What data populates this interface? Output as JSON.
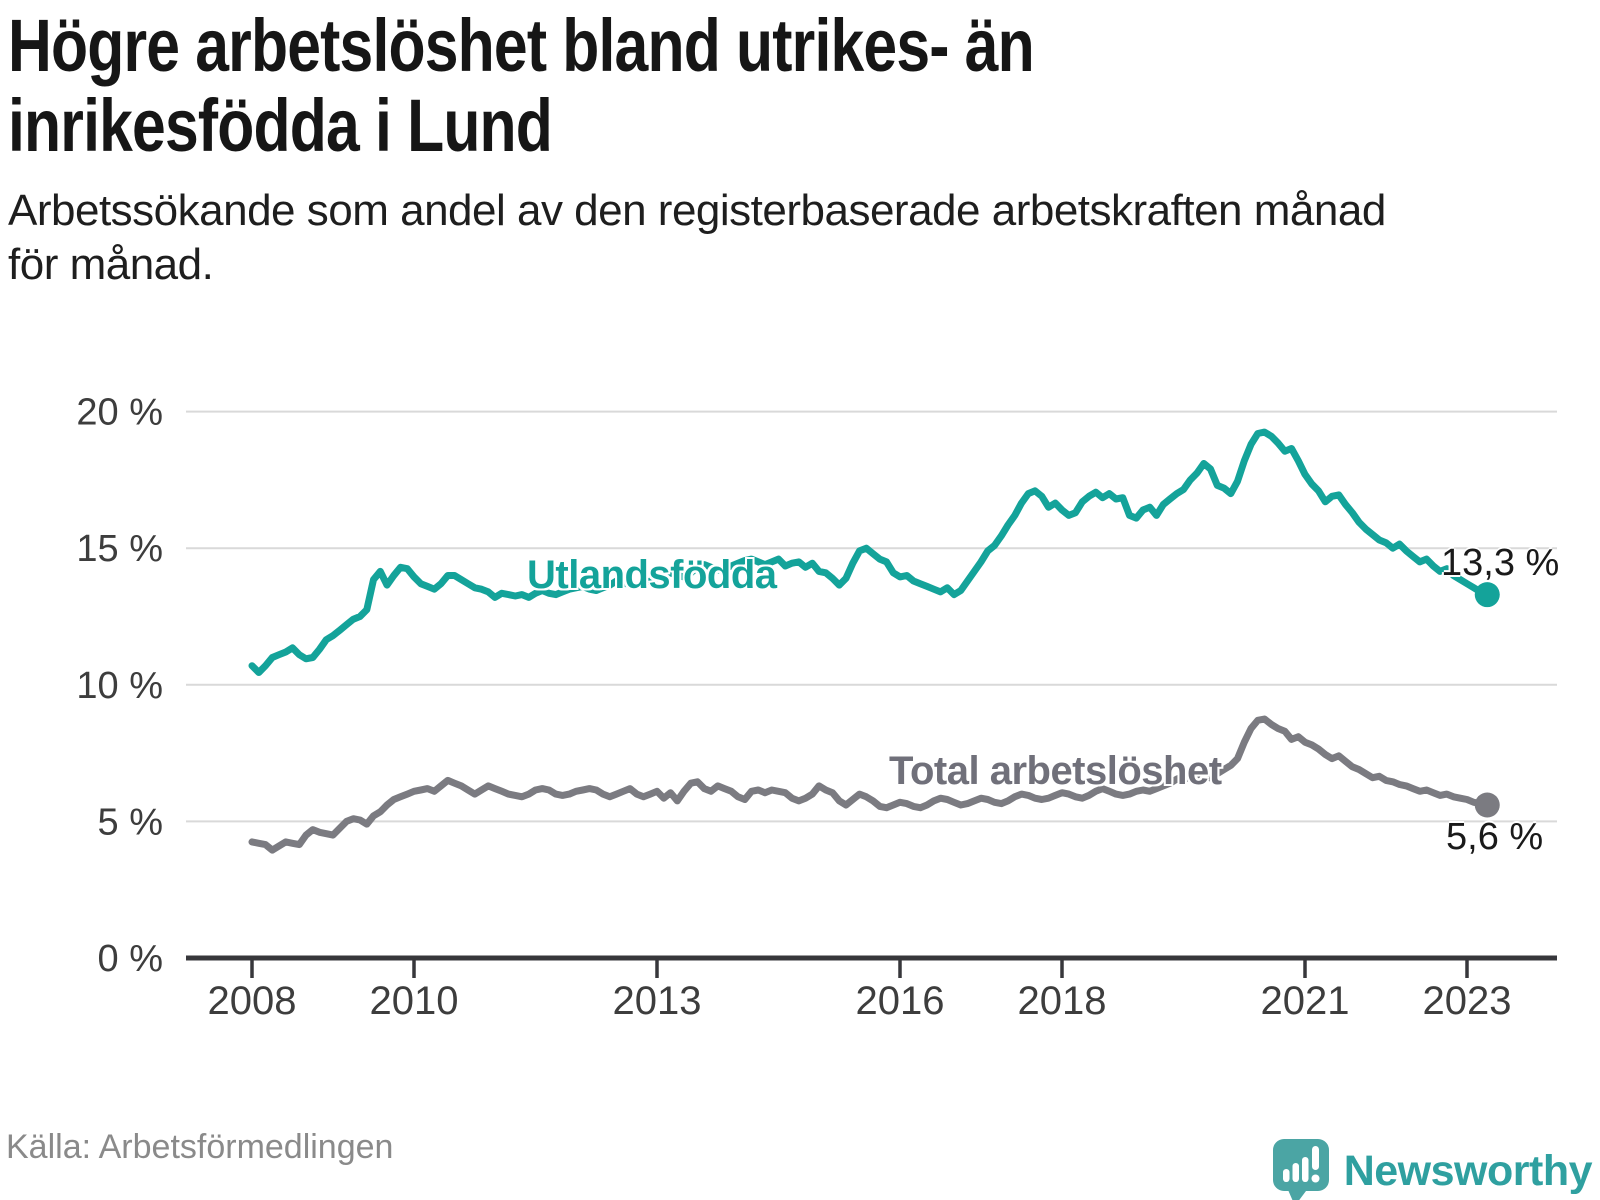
{
  "title_lines": [
    "Högre arbetslöshet bland utrikes- än",
    "inrikesfödda i Lund"
  ],
  "subtitle_lines": [
    "Arbetssökande som andel av den registerbaserade arbetskraften månad",
    "för månad."
  ],
  "source": "Källa: Arbetsförmedlingen",
  "brand": {
    "name": "Newsworthy",
    "bubble_color": "#4BA5A4",
    "text_color": "#2FA0A0"
  },
  "chart_data": {
    "type": "line",
    "frequency": "monthly",
    "x_start": "2008-01",
    "x_end": "2023-04",
    "x_tick_years": [
      2008,
      2010,
      2013,
      2016,
      2018,
      2021,
      2023
    ],
    "x_tick_labels": [
      "2008",
      "2010",
      "2013",
      "2016",
      "2018",
      "2021",
      "2023"
    ],
    "y_ticks": [
      0,
      5,
      10,
      15,
      20
    ],
    "y_tick_labels": [
      "0 %",
      "5 %",
      "10 %",
      "15 %",
      "20 %"
    ],
    "ylim": [
      0,
      21
    ],
    "grid": "horizontal",
    "colors": {
      "grid": "#d9d9d9",
      "axis": "#37373b",
      "tick_text": "#3d3d3d"
    },
    "series": [
      {
        "name": "Utlandsfödda",
        "color": "#14A39A",
        "end_label": "13,3 %",
        "last_value": 13.3,
        "values": [
          10.7,
          10.45,
          10.7,
          11.0,
          11.1,
          11.2,
          11.35,
          11.1,
          10.95,
          11.0,
          11.3,
          11.65,
          11.8,
          12.0,
          12.2,
          12.4,
          12.5,
          12.75,
          13.85,
          14.15,
          13.65,
          14.0,
          14.3,
          14.25,
          13.95,
          13.7,
          13.6,
          13.5,
          13.7,
          14.0,
          14.0,
          13.85,
          13.7,
          13.55,
          13.5,
          13.4,
          13.2,
          13.35,
          13.3,
          13.25,
          13.3,
          13.2,
          13.35,
          13.45,
          13.35,
          13.3,
          13.4,
          13.5,
          13.55,
          13.6,
          13.5,
          13.45,
          13.55,
          13.65,
          13.8,
          13.75,
          13.65,
          13.6,
          13.7,
          13.8,
          13.9,
          14.0,
          14.1,
          14.0,
          13.95,
          14.1,
          14.3,
          14.4,
          14.3,
          14.2,
          14.25,
          14.35,
          14.45,
          14.55,
          14.6,
          14.5,
          14.4,
          14.5,
          14.6,
          14.35,
          14.45,
          14.5,
          14.3,
          14.45,
          14.15,
          14.1,
          13.9,
          13.65,
          13.9,
          14.45,
          14.9,
          15.0,
          14.8,
          14.6,
          14.5,
          14.1,
          13.95,
          14.0,
          13.8,
          13.7,
          13.6,
          13.5,
          13.4,
          13.55,
          13.3,
          13.45,
          13.8,
          14.15,
          14.5,
          14.9,
          15.1,
          15.45,
          15.85,
          16.2,
          16.65,
          17.0,
          17.1,
          16.9,
          16.5,
          16.65,
          16.4,
          16.2,
          16.3,
          16.7,
          16.9,
          17.05,
          16.85,
          17.0,
          16.8,
          16.85,
          16.2,
          16.1,
          16.4,
          16.5,
          16.2,
          16.6,
          16.8,
          17.0,
          17.15,
          17.5,
          17.75,
          18.1,
          17.9,
          17.3,
          17.2,
          17.0,
          17.45,
          18.2,
          18.8,
          19.2,
          19.25,
          19.1,
          18.85,
          18.55,
          18.65,
          18.2,
          17.7,
          17.35,
          17.1,
          16.7,
          16.9,
          16.95,
          16.6,
          16.3,
          15.95,
          15.7,
          15.5,
          15.3,
          15.2,
          15.0,
          15.15,
          14.9,
          14.7,
          14.5,
          14.6,
          14.35,
          14.15,
          14.25,
          14.0,
          13.85,
          13.7,
          13.55,
          13.4,
          13.3
        ]
      },
      {
        "name": "Total arbetslöshet",
        "color": "#7B7B81",
        "end_label": "5,6 %",
        "last_value": 5.6,
        "values": [
          4.25,
          4.2,
          4.15,
          3.95,
          4.1,
          4.25,
          4.2,
          4.15,
          4.5,
          4.7,
          4.6,
          4.55,
          4.5,
          4.75,
          5.0,
          5.1,
          5.05,
          4.9,
          5.2,
          5.35,
          5.6,
          5.8,
          5.9,
          6.0,
          6.1,
          6.15,
          6.2,
          6.1,
          6.3,
          6.5,
          6.4,
          6.3,
          6.15,
          6.0,
          6.15,
          6.3,
          6.2,
          6.1,
          6.0,
          5.95,
          5.9,
          6.0,
          6.15,
          6.2,
          6.15,
          6.0,
          5.95,
          6.0,
          6.1,
          6.15,
          6.2,
          6.15,
          6.0,
          5.9,
          6.0,
          6.1,
          6.2,
          6.0,
          5.9,
          6.0,
          6.1,
          5.85,
          6.05,
          5.75,
          6.1,
          6.4,
          6.45,
          6.2,
          6.1,
          6.3,
          6.2,
          6.1,
          5.9,
          5.8,
          6.1,
          6.15,
          6.05,
          6.15,
          6.1,
          6.05,
          5.85,
          5.75,
          5.85,
          6.0,
          6.3,
          6.15,
          6.05,
          5.75,
          5.6,
          5.8,
          6.0,
          5.9,
          5.75,
          5.55,
          5.5,
          5.6,
          5.7,
          5.65,
          5.55,
          5.5,
          5.6,
          5.75,
          5.85,
          5.8,
          5.7,
          5.6,
          5.65,
          5.75,
          5.85,
          5.8,
          5.7,
          5.65,
          5.75,
          5.9,
          6.0,
          5.95,
          5.85,
          5.8,
          5.85,
          5.95,
          6.05,
          6.0,
          5.9,
          5.85,
          5.95,
          6.1,
          6.2,
          6.1,
          6.0,
          5.95,
          6.0,
          6.1,
          6.15,
          6.1,
          6.2,
          6.3,
          6.4,
          6.55,
          6.65,
          6.55,
          6.5,
          6.55,
          6.6,
          6.75,
          6.9,
          7.05,
          7.3,
          7.9,
          8.4,
          8.7,
          8.75,
          8.55,
          8.4,
          8.3,
          8.0,
          8.1,
          7.9,
          7.8,
          7.65,
          7.45,
          7.3,
          7.4,
          7.2,
          7.0,
          6.9,
          6.75,
          6.6,
          6.65,
          6.5,
          6.45,
          6.35,
          6.3,
          6.2,
          6.1,
          6.15,
          6.05,
          5.95,
          6.0,
          5.9,
          5.85,
          5.8,
          5.7,
          5.65,
          5.6
        ]
      }
    ]
  }
}
